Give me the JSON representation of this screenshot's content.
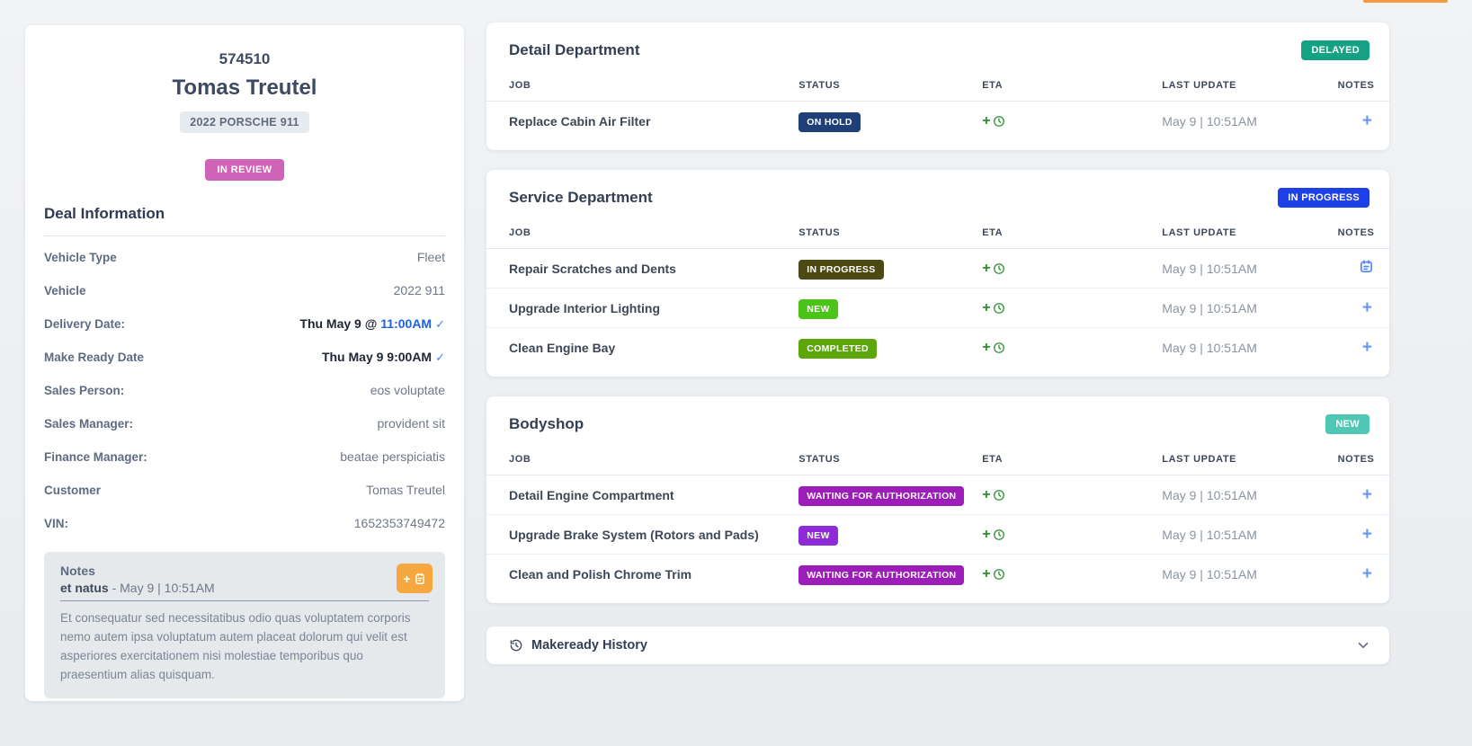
{
  "top_accent_color": "#f59b3d",
  "deal_card": {
    "deal_number": "574510",
    "customer_name": "Tomas Treutel",
    "vehicle_chip": "2022 PORSCHE 911",
    "status_badge": "IN REVIEW",
    "status_badge_color": "#cf63b8",
    "section_title": "Deal Information",
    "fields": [
      {
        "label": "Vehicle Type",
        "value": "Fleet"
      },
      {
        "label": "Vehicle",
        "value": "2022 911"
      },
      {
        "label": "Delivery Date:",
        "value_strong": "Thu May 9 @ ",
        "value_link": "11:00AM",
        "check": "✓"
      },
      {
        "label": "Make Ready Date",
        "value_strong": "Thu May 9 9:00AM",
        "check": "✓"
      },
      {
        "label": "Sales Person:",
        "value": "eos voluptate"
      },
      {
        "label": "Sales Manager:",
        "value": "provident sit"
      },
      {
        "label": "Finance Manager:",
        "value": "beatae perspiciatis"
      },
      {
        "label": "Customer",
        "value": "Tomas Treutel"
      },
      {
        "label": "VIN:",
        "value": "1652353749472"
      }
    ],
    "notes": {
      "title": "Notes",
      "author": "et natus",
      "timestamp": "- May 9 | 10:51AM",
      "body": "Et consequatur sed necessitatibus odio quas voluptatem corporis nemo autem ipsa voluptatum autem placeat dolorum qui velit est asperiores exercitationem nisi molestiae temporibus quo praesentium alias quisquam.",
      "add_button_label": "+"
    }
  },
  "table_columns": [
    "JOB",
    "STATUS",
    "ETA",
    "LAST UPDATE",
    "NOTES"
  ],
  "departments": [
    {
      "title": "Detail Department",
      "badge": "DELAYED",
      "badge_color": "#14a184",
      "rows": [
        {
          "job": "Replace Cabin Air Filter",
          "status": "ON HOLD",
          "status_color": "#1f3f78",
          "last_update": "May 9 | 10:51AM",
          "notes_icon": "plus"
        }
      ]
    },
    {
      "title": "Service Department",
      "badge": "IN PROGRESS",
      "badge_color": "#1d40e8",
      "rows": [
        {
          "job": "Repair Scratches and Dents",
          "status": "IN PROGRESS",
          "status_color": "#4c4a12",
          "last_update": "May 9 | 10:51AM",
          "notes_icon": "clipboard"
        },
        {
          "job": "Upgrade Interior Lighting",
          "status": "NEW",
          "status_color": "#4cc417",
          "last_update": "May 9 | 10:51AM",
          "notes_icon": "plus"
        },
        {
          "job": "Clean Engine Bay",
          "status": "COMPLETED",
          "status_color": "#5ca60c",
          "last_update": "May 9 | 10:51AM",
          "notes_icon": "plus"
        }
      ]
    },
    {
      "title": "Bodyshop",
      "badge": "NEW",
      "badge_color": "#4fc7b4",
      "rows": [
        {
          "job": "Detail Engine Compartment",
          "status": "WAITING FOR AUTHORIZATION",
          "status_color": "#9c1db8",
          "last_update": "May 9 | 10:51AM",
          "notes_icon": "plus"
        },
        {
          "job": "Upgrade Brake System (Rotors and Pads)",
          "status": "NEW",
          "status_color": "#8e2ad6",
          "last_update": "May 9 | 10:51AM",
          "notes_icon": "plus"
        },
        {
          "job": "Clean and Polish Chrome Trim",
          "status": "WAITING FOR AUTHORIZATION",
          "status_color": "#9c1db8",
          "last_update": "May 9 | 10:51AM",
          "notes_icon": "plus"
        }
      ]
    }
  ],
  "history_bar": {
    "label": "Makeready History"
  }
}
